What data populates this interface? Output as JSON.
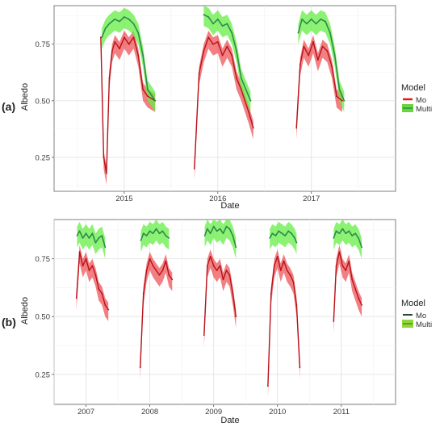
{
  "chart_data": [
    {
      "panel_label": "(a)",
      "type": "line",
      "xlabel": "Date",
      "ylabel": "Albedo",
      "x_tick_labels": [
        "2015",
        "2016",
        "2017"
      ],
      "y_tick_labels": [
        "0.25",
        "0.50",
        "0.75"
      ],
      "ylim": [
        0.1,
        0.92
      ],
      "xlim": [
        2014.25,
        2017.9
      ],
      "grid": true,
      "legend": {
        "title": "Model",
        "placement": "right",
        "entries": [
          "Mo",
          "Multi"
        ]
      },
      "series": [
        {
          "name": "Mo",
          "color": "#e8161a",
          "x": [
            2014.75,
            2014.78,
            2014.81,
            2014.84,
            2014.87,
            2014.9,
            2014.95,
            2015.0,
            2015.05,
            2015.1,
            2015.15,
            2015.2,
            2015.25,
            2015.33,
            2015.75,
            2015.8,
            2015.85,
            2015.9,
            2015.95,
            2016.0,
            2016.05,
            2016.1,
            2016.15,
            2016.2,
            2016.25,
            2016.33,
            2016.38,
            2016.84,
            2016.88,
            2016.92,
            2016.97,
            2017.02,
            2017.07,
            2017.12,
            2017.17,
            2017.22,
            2017.27,
            2017.33
          ],
          "y": [
            0.78,
            0.25,
            0.18,
            0.6,
            0.72,
            0.76,
            0.73,
            0.78,
            0.75,
            0.78,
            0.7,
            0.55,
            0.52,
            0.5,
            0.2,
            0.62,
            0.72,
            0.78,
            0.75,
            0.76,
            0.7,
            0.74,
            0.7,
            0.6,
            0.55,
            0.45,
            0.38,
            0.38,
            0.66,
            0.74,
            0.7,
            0.76,
            0.68,
            0.74,
            0.72,
            0.65,
            0.52,
            0.5
          ]
        },
        {
          "name": "Multi",
          "color": "#5ac437",
          "x": [
            2014.76,
            2014.8,
            2014.84,
            2014.9,
            2014.95,
            2015.0,
            2015.05,
            2015.1,
            2015.15,
            2015.2,
            2015.25,
            2015.33,
            2015.85,
            2015.9,
            2015.95,
            2016.0,
            2016.05,
            2016.1,
            2016.15,
            2016.2,
            2016.25,
            2016.3,
            2016.35,
            2016.86,
            2016.9,
            2016.95,
            2017.0,
            2017.05,
            2017.1,
            2017.15,
            2017.2,
            2017.25,
            2017.3,
            2017.35
          ],
          "y": [
            0.78,
            0.82,
            0.84,
            0.86,
            0.85,
            0.87,
            0.86,
            0.84,
            0.8,
            0.7,
            0.55,
            0.5,
            0.88,
            0.87,
            0.84,
            0.86,
            0.83,
            0.84,
            0.8,
            0.72,
            0.6,
            0.55,
            0.5,
            0.8,
            0.86,
            0.84,
            0.86,
            0.84,
            0.86,
            0.85,
            0.8,
            0.7,
            0.55,
            0.5
          ]
        }
      ]
    },
    {
      "panel_label": "(b)",
      "type": "line",
      "xlabel": "Date",
      "ylabel": "Albedo",
      "x_tick_labels": [
        "2007",
        "2008",
        "2009",
        "2010",
        "2011"
      ],
      "y_tick_labels": [
        "0.25",
        "0.50",
        "0.75"
      ],
      "ylim": [
        0.12,
        0.92
      ],
      "xlim": [
        2006.5,
        2011.85
      ],
      "grid": true,
      "legend": {
        "title": "Model",
        "placement": "right",
        "entries": [
          "Mo",
          "Multi"
        ]
      },
      "series": [
        {
          "name": "Mo",
          "color": "#e8161a",
          "x": [
            2006.85,
            2006.9,
            2006.95,
            2007.0,
            2007.05,
            2007.1,
            2007.15,
            2007.2,
            2007.25,
            2007.3,
            2007.35,
            2007.85,
            2007.9,
            2007.95,
            2008.0,
            2008.05,
            2008.1,
            2008.15,
            2008.2,
            2008.25,
            2008.3,
            2008.35,
            2008.85,
            2008.9,
            2008.95,
            2009.0,
            2009.05,
            2009.1,
            2009.15,
            2009.2,
            2009.25,
            2009.3,
            2009.35,
            2009.85,
            2009.9,
            2009.95,
            2010.0,
            2010.05,
            2010.1,
            2010.15,
            2010.2,
            2010.25,
            2010.3,
            2010.35,
            2010.88,
            2010.92,
            2010.97,
            2011.02,
            2011.07,
            2011.12,
            2011.17,
            2011.22,
            2011.27,
            2011.32
          ],
          "y": [
            0.58,
            0.78,
            0.72,
            0.75,
            0.7,
            0.72,
            0.68,
            0.62,
            0.6,
            0.55,
            0.53,
            0.28,
            0.6,
            0.7,
            0.75,
            0.72,
            0.7,
            0.68,
            0.7,
            0.74,
            0.68,
            0.66,
            0.42,
            0.72,
            0.76,
            0.72,
            0.7,
            0.72,
            0.66,
            0.7,
            0.68,
            0.6,
            0.5,
            0.2,
            0.6,
            0.72,
            0.76,
            0.7,
            0.74,
            0.7,
            0.68,
            0.65,
            0.55,
            0.28,
            0.48,
            0.72,
            0.78,
            0.72,
            0.7,
            0.74,
            0.66,
            0.62,
            0.58,
            0.55
          ]
        },
        {
          "name": "Multi",
          "color": "#5ac437",
          "x": [
            2006.86,
            2006.9,
            2006.95,
            2007.0,
            2007.05,
            2007.1,
            2007.15,
            2007.2,
            2007.25,
            2007.3,
            2007.86,
            2007.9,
            2007.95,
            2008.0,
            2008.05,
            2008.1,
            2008.15,
            2008.2,
            2008.25,
            2008.3,
            2008.86,
            2008.9,
            2008.95,
            2009.0,
            2009.05,
            2009.1,
            2009.15,
            2009.2,
            2009.25,
            2009.3,
            2009.35,
            2009.88,
            2009.92,
            2009.97,
            2010.02,
            2010.07,
            2010.12,
            2010.17,
            2010.22,
            2010.27,
            2010.3,
            2010.88,
            2010.92,
            2010.97,
            2011.02,
            2011.07,
            2011.12,
            2011.17,
            2011.22,
            2011.27,
            2011.32
          ],
          "y": [
            0.85,
            0.87,
            0.84,
            0.86,
            0.84,
            0.86,
            0.82,
            0.84,
            0.85,
            0.8,
            0.83,
            0.86,
            0.85,
            0.87,
            0.86,
            0.88,
            0.86,
            0.87,
            0.85,
            0.84,
            0.85,
            0.88,
            0.86,
            0.89,
            0.87,
            0.88,
            0.86,
            0.89,
            0.88,
            0.85,
            0.8,
            0.84,
            0.86,
            0.85,
            0.87,
            0.86,
            0.85,
            0.87,
            0.86,
            0.84,
            0.82,
            0.84,
            0.87,
            0.86,
            0.88,
            0.86,
            0.87,
            0.85,
            0.86,
            0.84,
            0.8
          ]
        }
      ]
    }
  ],
  "colors": {
    "panel_border": "#7f7f7f",
    "grid_major": "#e3e3e3",
    "grid_minor": "#f0f0f0",
    "mo_line": "#b8121a",
    "mo_band": "#e8161a",
    "multi_line": "#2e8a4c",
    "multi_band": "#66ee44",
    "legend_mo_key": "#e8161a",
    "legend_multi_key": "#66d63a",
    "text": "#3a3a3a"
  }
}
